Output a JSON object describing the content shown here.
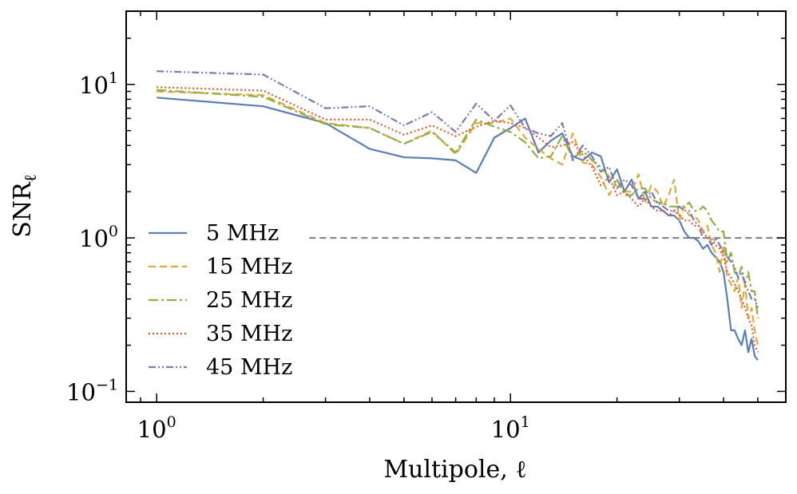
{
  "chart_data": {
    "type": "line",
    "title": "",
    "xlabel": "Multipole, ℓ",
    "ylabel": "SNRℓ",
    "ylabel_main": "SNR",
    "ylabel_sub": "ℓ",
    "xscale": "log",
    "yscale": "log",
    "xlim": [
      0.82,
      60
    ],
    "ylim": [
      0.085,
      30
    ],
    "x_ticks": [
      {
        "value": 1,
        "base": "10",
        "exp": "0"
      },
      {
        "value": 10,
        "base": "10",
        "exp": "1"
      }
    ],
    "y_ticks": [
      {
        "value": 0.1,
        "base": "10",
        "exp": "−1"
      },
      {
        "value": 1,
        "base": "10",
        "exp": "0"
      },
      {
        "value": 10,
        "base": "10",
        "exp": "1"
      }
    ],
    "reference_line": {
      "y": 1.0,
      "x_start": 2.7,
      "style": "dashed",
      "color": "#808080"
    },
    "legend_position": "lower-left",
    "x": [
      1,
      2,
      3,
      4,
      5,
      6,
      7,
      8,
      9,
      10,
      11,
      12,
      13,
      14,
      15,
      16,
      17,
      18,
      19,
      20,
      21,
      22,
      23,
      24,
      25,
      26,
      27,
      28,
      29,
      30,
      31,
      32,
      33,
      34,
      35,
      36,
      37,
      38,
      39,
      40,
      41,
      42,
      43,
      44,
      45,
      46,
      47,
      48,
      49,
      50
    ],
    "series": [
      {
        "name": "5 MHz",
        "color": "#5a7fb8",
        "dash": "",
        "values": [
          8.2,
          7.2,
          5.6,
          3.8,
          3.35,
          3.3,
          3.2,
          2.65,
          4.5,
          5.2,
          6.0,
          3.6,
          4.3,
          4.8,
          3.4,
          3.2,
          3.6,
          3.4,
          2.3,
          2.8,
          2.0,
          2.4,
          1.8,
          2.0,
          1.6,
          1.6,
          1.5,
          1.4,
          1.4,
          1.3,
          1.1,
          1.0,
          1.0,
          0.95,
          0.85,
          0.9,
          0.8,
          0.75,
          0.7,
          0.6,
          0.4,
          0.25,
          0.25,
          0.22,
          0.2,
          0.25,
          0.18,
          0.22,
          0.17,
          0.16
        ]
      },
      {
        "name": "15 MHz",
        "color": "#e2a83a",
        "dash": "9,5",
        "values": [
          9.0,
          8.5,
          5.6,
          5.2,
          4.1,
          5.0,
          3.5,
          5.6,
          5.6,
          6.0,
          4.5,
          3.8,
          3.3,
          3.0,
          4.8,
          3.1,
          3.0,
          2.5,
          1.9,
          2.4,
          2.0,
          2.0,
          2.6,
          1.7,
          2.2,
          2.0,
          1.6,
          1.9,
          2.4,
          1.3,
          1.6,
          1.4,
          1.4,
          1.3,
          1.1,
          1.2,
          0.9,
          0.8,
          0.6,
          0.9,
          0.55,
          0.5,
          0.45,
          0.55,
          0.35,
          0.5,
          0.3,
          0.35,
          0.25,
          0.2
        ]
      },
      {
        "name": "25 MHz",
        "color": "#8db045",
        "dash": "12,4,3,4",
        "values": [
          9.2,
          8.3,
          5.5,
          5.2,
          4.1,
          4.9,
          3.6,
          5.9,
          5.3,
          4.9,
          4.2,
          3.3,
          3.4,
          4.6,
          3.3,
          3.7,
          3.2,
          2.9,
          2.5,
          2.4,
          1.9,
          1.9,
          2.1,
          2.1,
          1.8,
          1.7,
          1.7,
          1.6,
          1.6,
          1.6,
          1.6,
          1.7,
          1.5,
          1.5,
          1.6,
          1.5,
          1.3,
          1.2,
          1.1,
          1.1,
          0.7,
          0.8,
          0.6,
          0.55,
          0.65,
          0.5,
          0.6,
          0.45,
          0.45,
          0.3
        ]
      },
      {
        "name": "35 MHz",
        "color": "#e3582c",
        "dash": "2,3",
        "values": [
          9.6,
          9.1,
          5.9,
          5.9,
          4.7,
          5.4,
          4.6,
          5.3,
          5.8,
          5.6,
          5.2,
          4.5,
          3.9,
          4.0,
          4.2,
          3.5,
          2.9,
          2.2,
          2.5,
          1.9,
          2.0,
          1.8,
          1.6,
          1.8,
          1.6,
          1.5,
          1.5,
          1.4,
          1.5,
          1.4,
          1.3,
          1.3,
          1.2,
          1.2,
          1.1,
          1.0,
          1.0,
          0.9,
          0.85,
          0.75,
          0.6,
          0.55,
          0.5,
          0.45,
          0.4,
          0.35,
          0.3,
          0.27,
          0.2,
          0.18
        ]
      },
      {
        "name": "45 MHz",
        "color": "#7f78b6",
        "dash": "9,3,2,3,2,3",
        "values": [
          12.2,
          11.6,
          7.0,
          7.2,
          5.4,
          6.6,
          4.9,
          7.5,
          5.8,
          7.3,
          5.2,
          4.8,
          4.6,
          5.6,
          3.2,
          4.0,
          3.4,
          2.7,
          2.9,
          2.1,
          2.4,
          2.2,
          1.8,
          1.8,
          2.0,
          1.7,
          1.6,
          1.5,
          1.5,
          1.6,
          1.5,
          1.5,
          1.3,
          1.2,
          1.0,
          1.0,
          0.9,
          1.0,
          0.9,
          0.8,
          0.75,
          0.7,
          0.65,
          0.55,
          0.6,
          0.5,
          0.45,
          0.4,
          0.4,
          0.35
        ]
      }
    ]
  }
}
